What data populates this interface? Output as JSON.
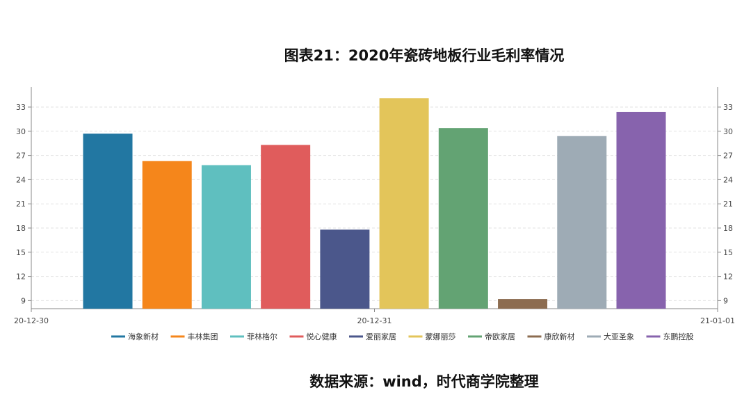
{
  "chart_data": {
    "type": "bar",
    "title": "图表21：2020年瓷砖地板行业毛利率情况",
    "xlabel": "",
    "ylabel": "",
    "x_ticks": [
      "20-12-30",
      "20-12-31",
      "21-01-01"
    ],
    "y_ticks": [
      9,
      12,
      15,
      18,
      21,
      24,
      27,
      30,
      33
    ],
    "ylim": [
      8,
      35.5
    ],
    "grid": true,
    "legend_position": "bottom",
    "series": [
      {
        "name": "海象新材",
        "value": 29.7,
        "color": "#2277a2"
      },
      {
        "name": "丰林集团",
        "value": 26.3,
        "color": "#f5861b"
      },
      {
        "name": "菲林格尔",
        "value": 25.8,
        "color": "#5fbfbf"
      },
      {
        "name": "悦心健康",
        "value": 28.3,
        "color": "#e05c5c"
      },
      {
        "name": "爱丽家居",
        "value": 17.8,
        "color": "#4b578b"
      },
      {
        "name": "蒙娜丽莎",
        "value": 34.1,
        "color": "#e3c55a"
      },
      {
        "name": "帝欧家居",
        "value": 30.4,
        "color": "#63a373"
      },
      {
        "name": "康欣新材",
        "value": 9.2,
        "color": "#8c6c50"
      },
      {
        "name": "大亚圣象",
        "value": 29.4,
        "color": "#9eabb5"
      },
      {
        "name": "东鹏控股",
        "value": 32.4,
        "color": "#8763ad"
      }
    ]
  },
  "source_note": "数据来源：wind，时代商学院整理"
}
